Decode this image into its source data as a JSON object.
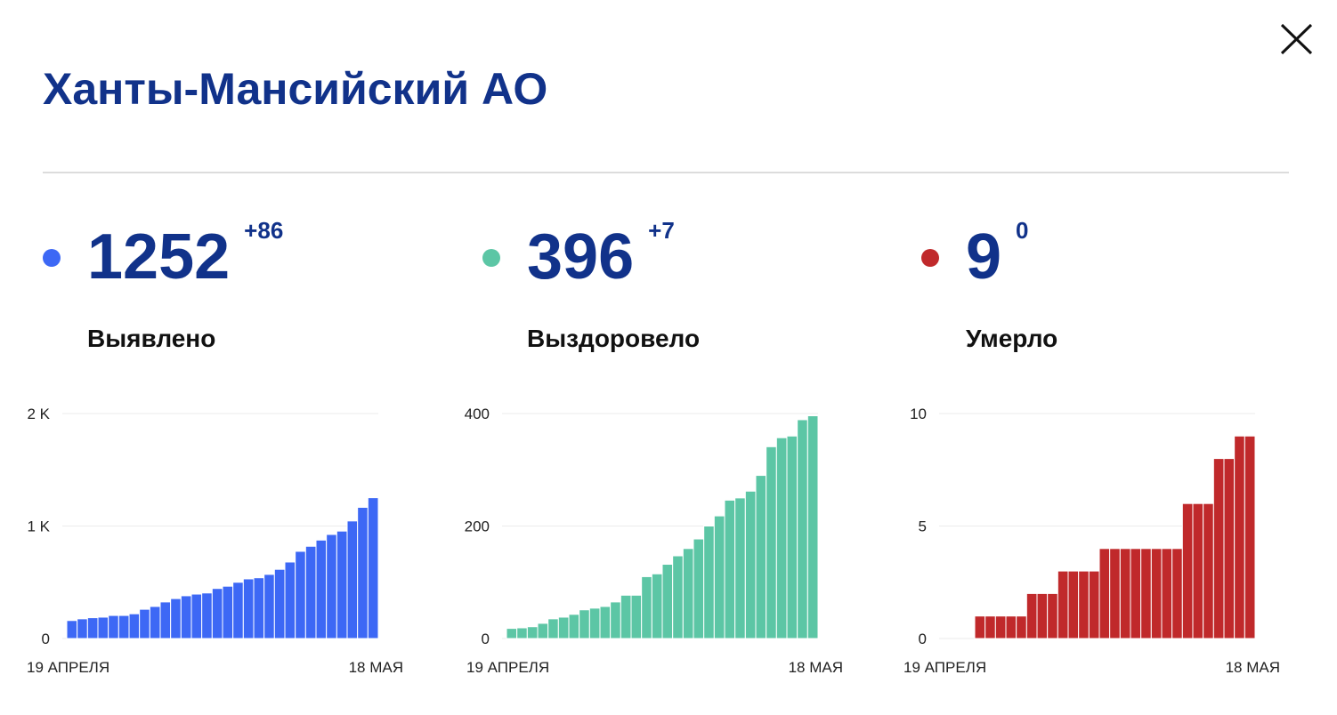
{
  "header": {
    "title": "Ханты-Мансийский АО"
  },
  "stats": [
    {
      "value": 1252,
      "change": "+86",
      "label": "Выявлено",
      "color": "#3d68f5"
    },
    {
      "value": 396,
      "change": "+7",
      "label": "Выздоровело",
      "color": "#5cc6a5"
    },
    {
      "value": 9,
      "change": "0",
      "label": "Умерло",
      "color": "#c0292b"
    }
  ],
  "chart_data": [
    {
      "type": "bar",
      "color": "#3d68f5",
      "grid": true,
      "categories": [
        "19 АПРЕЛЯ",
        null,
        null,
        null,
        null,
        null,
        null,
        null,
        null,
        null,
        null,
        null,
        null,
        null,
        null,
        null,
        null,
        null,
        null,
        null,
        null,
        null,
        null,
        null,
        null,
        null,
        null,
        null,
        null,
        "18 МАЯ"
      ],
      "values": [
        160,
        175,
        185,
        190,
        205,
        205,
        220,
        260,
        285,
        325,
        355,
        380,
        395,
        405,
        445,
        465,
        500,
        530,
        540,
        570,
        615,
        680,
        775,
        820,
        875,
        925,
        955,
        1045,
        1166,
        1252
      ],
      "ylim": [
        0,
        2000
      ],
      "yticks": [
        0,
        {
          "value": 1000,
          "label": "1 K"
        },
        {
          "value": 2000,
          "label": "2 K"
        }
      ]
    },
    {
      "type": "bar",
      "color": "#5cc6a5",
      "grid": true,
      "categories": [
        "19 АПРЕЛЯ",
        null,
        null,
        null,
        null,
        null,
        null,
        null,
        null,
        null,
        null,
        null,
        null,
        null,
        null,
        null,
        null,
        null,
        null,
        null,
        null,
        null,
        null,
        null,
        null,
        null,
        null,
        null,
        null,
        "18 МАЯ"
      ],
      "values": [
        18,
        19,
        21,
        27,
        35,
        38,
        43,
        51,
        54,
        57,
        65,
        77,
        77,
        110,
        115,
        132,
        147,
        160,
        177,
        200,
        218,
        246,
        250,
        262,
        290,
        341,
        357,
        360,
        389,
        396
      ],
      "ylim": [
        0,
        400
      ],
      "yticks": [
        0,
        200,
        400
      ]
    },
    {
      "type": "bar",
      "color": "#c0292b",
      "grid": true,
      "categories": [
        "19 АПРЕЛЯ",
        null,
        null,
        null,
        null,
        null,
        null,
        null,
        null,
        null,
        null,
        null,
        null,
        null,
        null,
        null,
        null,
        null,
        null,
        null,
        null,
        null,
        null,
        null,
        null,
        null,
        null,
        null,
        null,
        "18 МАЯ"
      ],
      "values": [
        0,
        0,
        0,
        1,
        1,
        1,
        1,
        1,
        2,
        2,
        2,
        3,
        3,
        3,
        3,
        4,
        4,
        4,
        4,
        4,
        4,
        4,
        4,
        6,
        6,
        6,
        8,
        8,
        9,
        9
      ],
      "ylim": [
        0,
        10
      ],
      "yticks": [
        0,
        5,
        10
      ]
    }
  ]
}
